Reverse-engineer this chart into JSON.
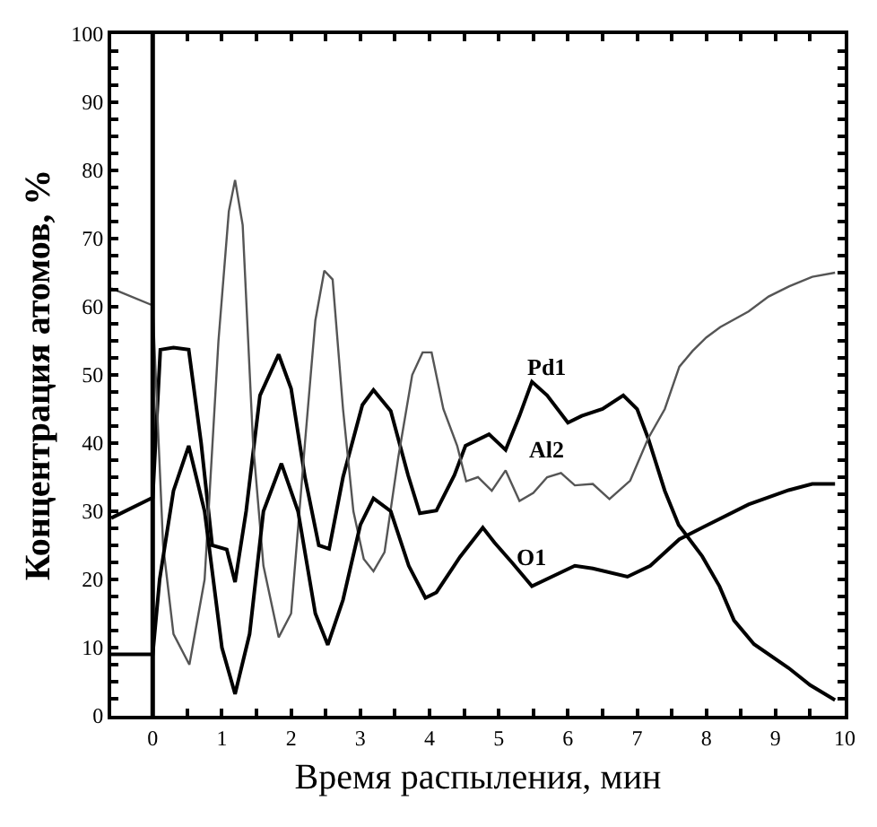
{
  "chart_data": {
    "type": "line",
    "xlabel": "Время распыления, мин",
    "ylabel": "Концентрация атомов, %",
    "xlim": [
      -0.6,
      10
    ],
    "ylim": [
      0,
      100
    ],
    "xticks": [
      0,
      {
        "value": 0.5,
        "label": null
      },
      1,
      {
        "value": 1.5,
        "label": null
      },
      2,
      {
        "value": 2.5,
        "label": null
      },
      3,
      {
        "value": 3.5,
        "label": null
      },
      4,
      {
        "value": 4.5,
        "label": null
      },
      5,
      {
        "value": 5.5,
        "label": null
      },
      6,
      {
        "value": 6.5,
        "label": null
      },
      7,
      {
        "value": 7.5,
        "label": null
      },
      8,
      {
        "value": 8.5,
        "label": null
      },
      9,
      {
        "value": 9.5,
        "label": null
      },
      10
    ],
    "yticks": [
      0,
      {
        "value": 2.5,
        "label": null
      },
      {
        "value": 5,
        "label": null
      },
      {
        "value": 7.5,
        "label": null
      },
      10,
      {
        "value": 12.5,
        "label": null
      },
      {
        "value": 15,
        "label": null
      },
      {
        "value": 17.5,
        "label": null
      },
      20,
      {
        "value": 22.5,
        "label": null
      },
      {
        "value": 25,
        "label": null
      },
      {
        "value": 27.5,
        "label": null
      },
      30,
      {
        "value": 32.5,
        "label": null
      },
      {
        "value": 35,
        "label": null
      },
      {
        "value": 37.5,
        "label": null
      },
      40,
      {
        "value": 42.5,
        "label": null
      },
      {
        "value": 45,
        "label": null
      },
      {
        "value": 47.5,
        "label": null
      },
      50,
      {
        "value": 52.5,
        "label": null
      },
      {
        "value": 55,
        "label": null
      },
      {
        "value": 57.5,
        "label": null
      },
      60,
      {
        "value": 62.5,
        "label": null
      },
      {
        "value": 65,
        "label": null
      },
      {
        "value": 67.5,
        "label": null
      },
      70,
      {
        "value": 72.5,
        "label": null
      },
      {
        "value": 75,
        "label": null
      },
      {
        "value": 77.5,
        "label": null
      },
      80,
      {
        "value": 82.5,
        "label": null
      },
      {
        "value": 85,
        "label": null
      },
      {
        "value": 87.5,
        "label": null
      },
      90,
      {
        "value": 92.5,
        "label": null
      },
      {
        "value": 95,
        "label": null
      },
      {
        "value": 97.5,
        "label": null
      },
      100
    ],
    "legend": false,
    "marker": "none",
    "line_style": "solid",
    "ref_lines": [
      {
        "axis": "x",
        "value": 0,
        "color": "#000000"
      }
    ],
    "series": [
      {
        "name": "Pd1",
        "color": "#000000",
        "x": [
          -0.6,
          0,
          0.11,
          0.3,
          0.52,
          0.7,
          0.86,
          1.07,
          1.19,
          1.35,
          1.55,
          1.82,
          2.0,
          2.2,
          2.4,
          2.55,
          2.75,
          3.03,
          3.19,
          3.44,
          3.69,
          3.86,
          4.1,
          4.36,
          4.52,
          4.86,
          5.1,
          5.3,
          5.48,
          5.7,
          6.0,
          6.2,
          6.5,
          6.8,
          7.0,
          7.16,
          7.4,
          7.6,
          7.94,
          8.19,
          8.4,
          8.69,
          9.19,
          9.5,
          9.86
        ],
        "values": [
          29,
          32,
          53.7,
          54,
          53.7,
          40,
          25,
          24.4,
          19.6,
          30,
          47,
          53,
          48,
          35,
          25,
          24.5,
          35,
          45.6,
          47.8,
          44.7,
          35.3,
          29.7,
          30.1,
          35.3,
          39.6,
          41.3,
          39,
          44,
          49,
          47,
          43,
          44,
          45,
          47,
          45,
          40.7,
          33,
          28,
          23.4,
          19,
          14,
          10.5,
          7,
          4.5,
          2.3
        ]
      },
      {
        "name": "Al2",
        "color": "#555555",
        "x": [
          -0.6,
          0,
          0.15,
          0.3,
          0.53,
          0.75,
          0.95,
          1.1,
          1.19,
          1.3,
          1.45,
          1.6,
          1.82,
          2.0,
          2.2,
          2.35,
          2.48,
          2.6,
          2.75,
          2.9,
          3.05,
          3.19,
          3.35,
          3.55,
          3.75,
          3.9,
          4.03,
          4.2,
          4.4,
          4.53,
          4.7,
          4.9,
          5.1,
          5.3,
          5.5,
          5.7,
          5.9,
          6.1,
          6.36,
          6.6,
          6.9,
          7.16,
          7.4,
          7.61,
          7.8,
          8.0,
          8.2,
          8.61,
          8.9,
          9.2,
          9.53,
          9.86
        ],
        "values": [
          62.7,
          60.2,
          25,
          12,
          7.5,
          20,
          55,
          74,
          78.6,
          72,
          40,
          22,
          11.5,
          15,
          40,
          58,
          65.3,
          64,
          45,
          30,
          23,
          21.2,
          24,
          38,
          50,
          53.3,
          53.3,
          45,
          39.6,
          34.4,
          35,
          33,
          36,
          31.5,
          32.7,
          35,
          35.6,
          33.8,
          34,
          31.8,
          34.5,
          40.7,
          45,
          51.2,
          53.5,
          55.5,
          57,
          59.3,
          61.5,
          63,
          64.4,
          65
        ]
      },
      {
        "name": "O1",
        "color": "#000000",
        "x": [
          -0.6,
          0,
          0.1,
          0.3,
          0.52,
          0.75,
          1.0,
          1.19,
          1.4,
          1.6,
          1.86,
          2.1,
          2.35,
          2.53,
          2.75,
          3.0,
          3.19,
          3.44,
          3.7,
          3.94,
          4.1,
          4.44,
          4.77,
          4.94,
          5.19,
          5.48,
          6.1,
          6.36,
          6.86,
          7.19,
          7.61,
          7.94,
          8.61,
          9.19,
          9.53,
          9.86
        ],
        "values": [
          9,
          9,
          20,
          33,
          39.6,
          30,
          10,
          3.2,
          12,
          30,
          37,
          30,
          15,
          10.4,
          17,
          28,
          31.9,
          30,
          22,
          17.3,
          18.1,
          23.3,
          27.6,
          25.4,
          22.5,
          19,
          22,
          21.6,
          20.4,
          22,
          25.9,
          27.6,
          31,
          33.1,
          34,
          34
        ]
      }
    ]
  }
}
